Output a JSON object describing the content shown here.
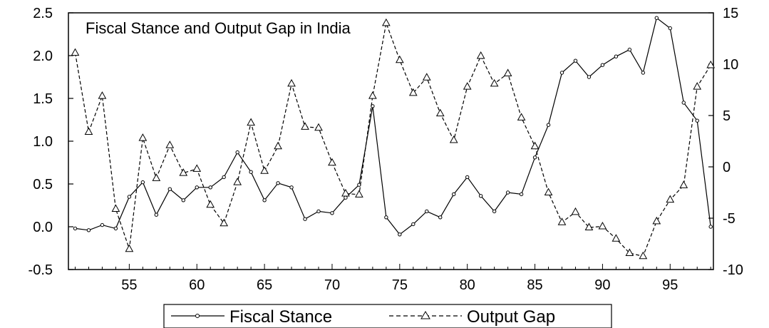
{
  "chart_data": {
    "type": "line",
    "title": "Fiscal Stance and Output Gap in India",
    "x": [
      51,
      52,
      53,
      54,
      55,
      56,
      57,
      58,
      59,
      60,
      61,
      62,
      63,
      64,
      65,
      66,
      67,
      68,
      69,
      70,
      71,
      72,
      73,
      74,
      75,
      76,
      77,
      78,
      79,
      80,
      81,
      82,
      83,
      84,
      85,
      86,
      87,
      88,
      89,
      90,
      91,
      92,
      93,
      94,
      95,
      96,
      97,
      98
    ],
    "x_ticks": [
      "55",
      "60",
      "65",
      "70",
      "75",
      "80",
      "85",
      "90",
      "95"
    ],
    "x_tick_values": [
      55,
      60,
      65,
      70,
      75,
      80,
      85,
      90,
      95
    ],
    "xlim": [
      50.5,
      98.2
    ],
    "y_left": {
      "ticks": [
        "2.5",
        "2.0",
        "1.5",
        "1.0",
        "0.5",
        "0.0",
        "-0.5"
      ],
      "tick_values": [
        2.5,
        2.0,
        1.5,
        1.0,
        0.5,
        0.0,
        -0.5
      ],
      "ylim": [
        -0.5,
        2.5
      ]
    },
    "y_right": {
      "ticks": [
        "15",
        "10",
        "5",
        "0",
        "-5",
        "-10"
      ],
      "tick_values": [
        15,
        10,
        5,
        0,
        -5,
        -10
      ],
      "ylim": [
        -10,
        15
      ]
    },
    "grid": false,
    "legend_position": "bottom-center",
    "series": [
      {
        "name": "Fiscal Stance",
        "axis": "left",
        "marker": "circle",
        "line_style": "solid",
        "values": [
          -0.02,
          -0.04,
          0.02,
          -0.02,
          0.35,
          0.52,
          0.14,
          0.44,
          0.31,
          0.46,
          0.46,
          0.58,
          0.87,
          0.64,
          0.31,
          0.51,
          0.46,
          0.09,
          0.18,
          0.16,
          0.34,
          0.49,
          1.41,
          0.11,
          -0.09,
          0.03,
          0.18,
          0.11,
          0.38,
          0.58,
          0.36,
          0.18,
          0.4,
          0.38,
          0.81,
          1.19,
          1.8,
          1.94,
          1.75,
          1.89,
          1.99,
          2.07,
          1.8,
          2.44,
          2.32,
          1.45,
          1.24,
          0.0
        ]
      },
      {
        "name": "Output Gap",
        "axis": "right",
        "marker": "triangle",
        "line_style": "dashed",
        "values": [
          11.1,
          3.4,
          6.9,
          -4.1,
          -8.0,
          2.8,
          -1.1,
          2.1,
          -0.6,
          -0.2,
          -3.7,
          -5.5,
          -1.5,
          4.3,
          -0.4,
          2.0,
          8.1,
          3.9,
          3.8,
          0.4,
          -2.6,
          -2.7,
          6.9,
          14.0,
          10.4,
          7.2,
          8.7,
          5.2,
          2.6,
          7.8,
          10.8,
          8.1,
          9.1,
          4.8,
          2.0,
          -2.5,
          -5.4,
          -4.4,
          -5.9,
          -5.8,
          -7.0,
          -8.4,
          -8.7,
          -5.3,
          -3.2,
          -1.8,
          7.8,
          9.9
        ]
      }
    ]
  }
}
